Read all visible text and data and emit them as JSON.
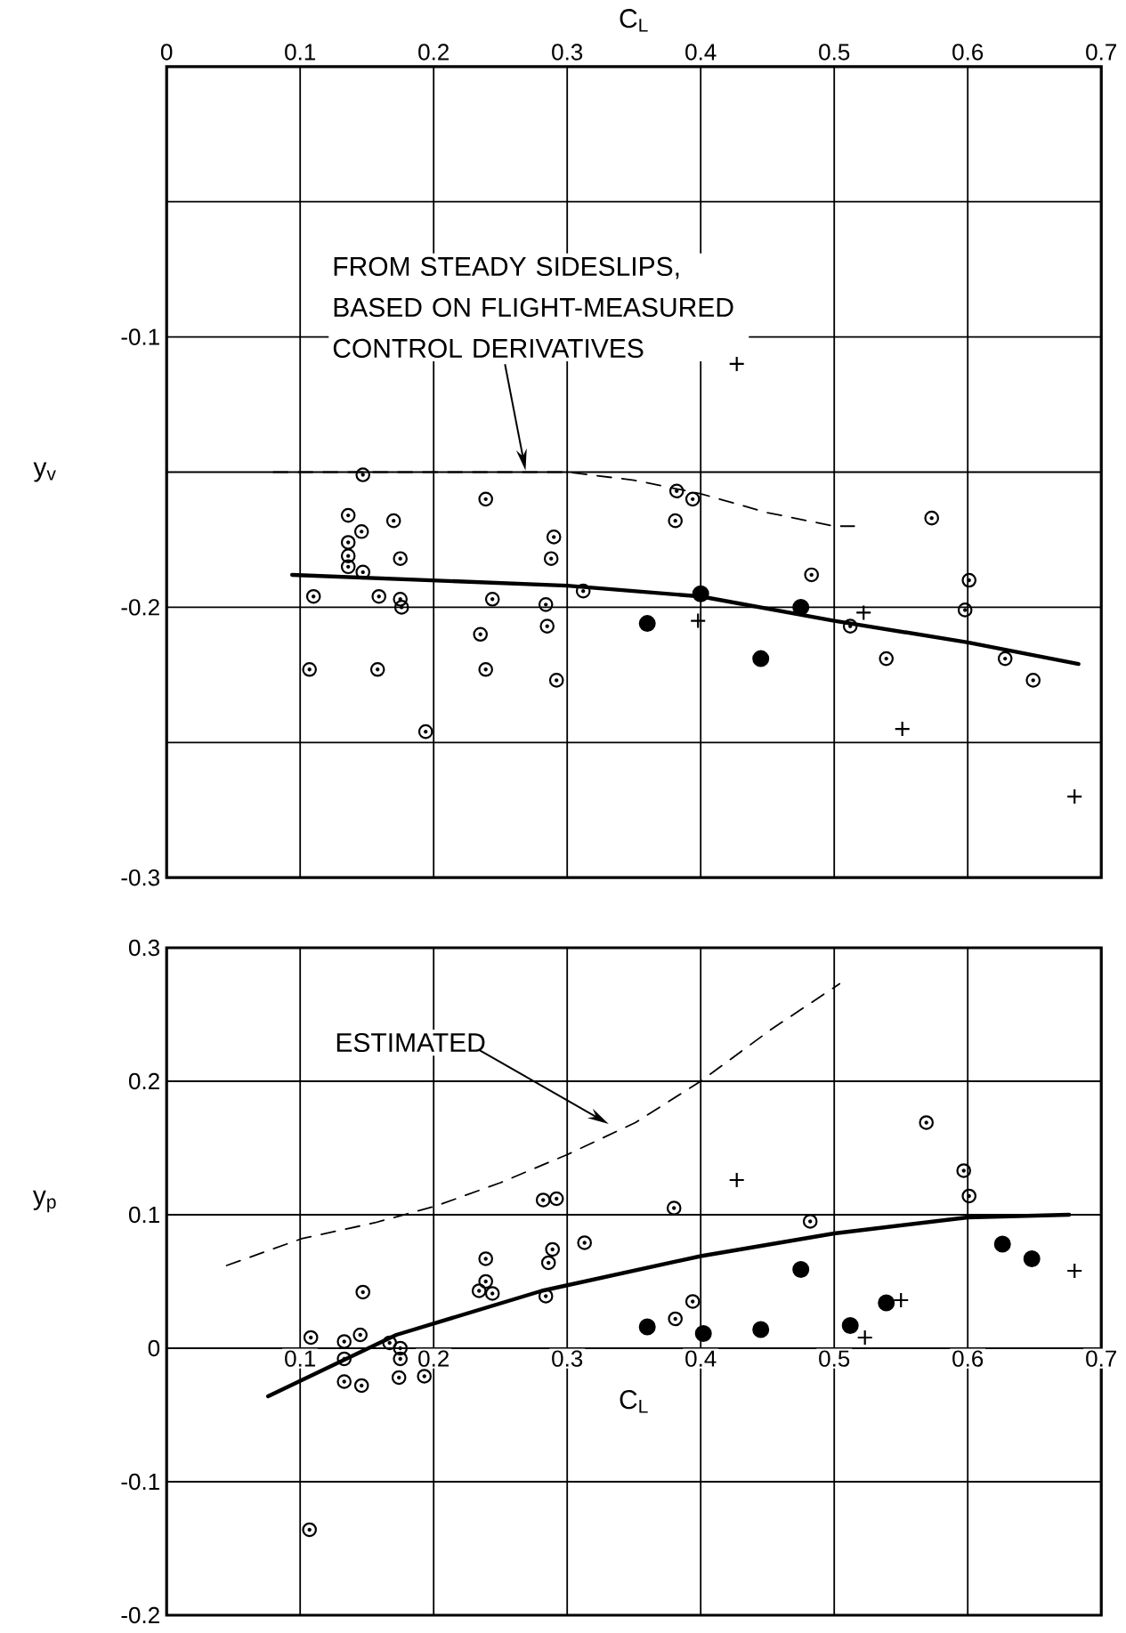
{
  "chart_data": [
    {
      "type": "scatter",
      "xlabel": "C$_{L}$",
      "ylabel": "y$_{v}$",
      "xlim": [
        0,
        0.7
      ],
      "ylim": [
        -0.3,
        0
      ],
      "xticks": [
        0,
        0.1,
        0.2,
        0.3,
        0.4,
        0.5,
        0.6,
        0.7
      ],
      "yticks": [
        {
          "value": 0,
          "label": null
        },
        {
          "value": -0.05,
          "label": null
        },
        -0.1,
        {
          "value": -0.15,
          "label": null
        },
        -0.2,
        {
          "value": -0.25,
          "label": null
        },
        -0.3
      ],
      "grid": true,
      "series": [
        {
          "marker": "circle",
          "color": "#000000",
          "x": [
            0.147,
            0.136,
            0.136,
            0.136,
            0.136,
            0.146,
            0.17,
            0.147,
            0.175,
            0.11,
            0.159,
            0.175,
            0.176,
            0.107,
            0.158,
            0.194,
            0.239,
            0.244,
            0.235,
            0.239,
            0.29,
            0.288,
            0.284,
            0.285,
            0.292,
            0.312,
            0.382,
            0.394,
            0.381,
            0.483,
            0.512,
            0.539,
            0.573,
            0.601,
            0.598,
            0.628,
            0.649
          ],
          "values": [
            -0.151,
            -0.166,
            -0.176,
            -0.181,
            -0.185,
            -0.172,
            -0.168,
            -0.187,
            -0.182,
            -0.196,
            -0.196,
            -0.197,
            -0.2,
            -0.223,
            -0.223,
            -0.246,
            -0.16,
            -0.197,
            -0.21,
            -0.223,
            -0.174,
            -0.182,
            -0.199,
            -0.207,
            -0.227,
            -0.194,
            -0.157,
            -0.16,
            -0.168,
            -0.188,
            -0.207,
            -0.219,
            -0.167,
            -0.19,
            -0.201,
            -0.219,
            -0.227
          ]
        },
        {
          "marker": "circle",
          "color": "#000000",
          "x": [
            0.36,
            0.4,
            0.445,
            0.475
          ],
          "values": [
            -0.206,
            -0.195,
            -0.219,
            -0.2
          ]
        },
        {
          "marker": "cross",
          "color": "#000000",
          "x": [
            0.427,
            0.398,
            0.522,
            0.551,
            0.68
          ],
          "values": [
            -0.11,
            -0.205,
            -0.202,
            -0.245,
            -0.27
          ]
        },
        {
          "type": "line",
          "marker": "none",
          "line_style": "solid",
          "color": "#000000",
          "x": [
            0.094,
            0.3,
            0.4,
            0.5,
            0.6,
            0.683
          ],
          "values": [
            -0.188,
            -0.192,
            -0.196,
            -0.205,
            -0.213,
            -0.221
          ]
        },
        {
          "type": "line",
          "marker": "none",
          "line_style": "dashed",
          "color": "#000000",
          "x": [
            0.08,
            0.3,
            0.35,
            0.4,
            0.45,
            0.5,
            0.515
          ],
          "values": [
            -0.15,
            -0.15,
            -0.153,
            -0.158,
            -0.165,
            -0.17,
            -0.17
          ]
        }
      ],
      "annotations": [
        "FROM STEADY SIDESLIPS, BASED ON FLIGHT-MEASURED CONTROL DERIVATIVES"
      ]
    },
    {
      "type": "scatter",
      "xlabel": "C$_{L}$",
      "ylabel": "y$_{p}$",
      "xlim": [
        0,
        0.7
      ],
      "ylim": [
        -0.2,
        0.3
      ],
      "xticks": [
        0.1,
        0.2,
        0.3,
        0.4,
        0.5,
        0.6,
        0.7
      ],
      "yticks": [
        0.3,
        0.2,
        0.1,
        0,
        -0.1,
        -0.2
      ],
      "grid": true,
      "series": [
        {
          "marker": "circle",
          "color": "#000000",
          "x": [
            0.108,
            0.107,
            0.133,
            0.133,
            0.133,
            0.146,
            0.145,
            0.147,
            0.167,
            0.175,
            0.175,
            0.174,
            0.193,
            0.239,
            0.239,
            0.234,
            0.244,
            0.282,
            0.292,
            0.289,
            0.286,
            0.284,
            0.313,
            0.38,
            0.381,
            0.394,
            0.482,
            0.569,
            0.597,
            0.601
          ],
          "values": [
            0.008,
            -0.136,
            0.005,
            -0.008,
            -0.025,
            -0.028,
            0.01,
            0.042,
            0.004,
            0.0,
            -0.008,
            -0.022,
            -0.021,
            0.067,
            0.05,
            0.043,
            0.041,
            0.111,
            0.112,
            0.074,
            0.064,
            0.039,
            0.079,
            0.105,
            0.022,
            0.035,
            0.095,
            0.169,
            0.133,
            0.114
          ]
        },
        {
          "marker": "circle",
          "color": "#000000",
          "x": [
            0.36,
            0.402,
            0.445,
            0.475,
            0.512,
            0.539,
            0.626,
            0.648
          ],
          "values": [
            0.016,
            0.011,
            0.014,
            0.059,
            0.017,
            0.034,
            0.078,
            0.067
          ]
        },
        {
          "marker": "cross",
          "color": "#000000",
          "x": [
            0.427,
            0.55,
            0.523,
            0.68
          ],
          "values": [
            0.126,
            0.036,
            0.008,
            0.058
          ]
        },
        {
          "type": "line",
          "marker": "none",
          "line_style": "solid",
          "color": "#000000",
          "x": [
            0.076,
            0.172,
            0.281,
            0.4,
            0.5,
            0.6,
            0.676
          ],
          "values": [
            -0.036,
            0.01,
            0.043,
            0.069,
            0.086,
            0.098,
            0.1
          ]
        },
        {
          "type": "line",
          "marker": "none",
          "line_style": "dashed",
          "color": "#000000",
          "x": [
            0.045,
            0.101,
            0.156,
            0.203,
            0.25,
            0.3,
            0.351,
            0.4,
            0.453,
            0.504
          ],
          "values": [
            0.062,
            0.082,
            0.094,
            0.107,
            0.124,
            0.145,
            0.169,
            0.2,
            0.239,
            0.273
          ]
        }
      ],
      "annotations": [
        "ESTIMATED"
      ]
    }
  ]
}
